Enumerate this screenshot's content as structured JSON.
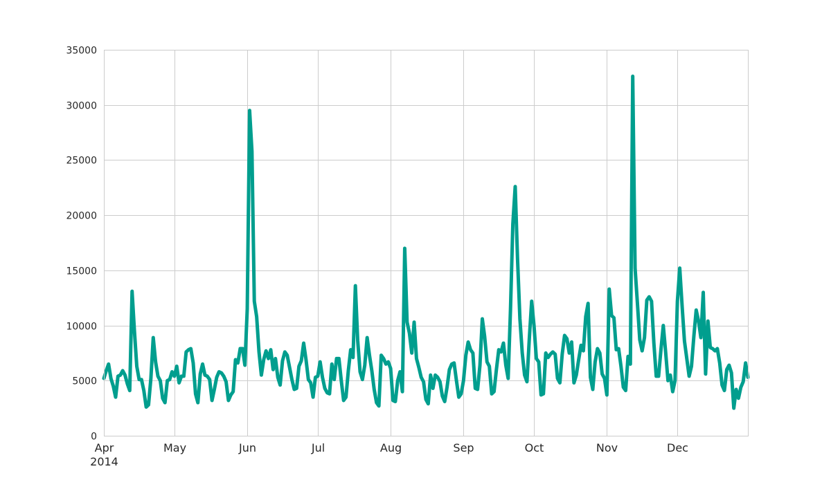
{
  "chart_data": {
    "type": "line",
    "title": "",
    "xlabel": "",
    "ylabel": "",
    "xlim": [
      "2014-04-01",
      "2014-12-31"
    ],
    "ylim": [
      0,
      35000
    ],
    "y_ticks": [
      "0",
      "5000",
      "10000",
      "15000",
      "20000",
      "25000",
      "30000",
      "35000"
    ],
    "x_ticks": [
      {
        "date": "2014-04-01",
        "label": "Apr",
        "sublabel": "2014"
      },
      {
        "date": "2014-05-01",
        "label": "May"
      },
      {
        "date": "2014-06-01",
        "label": "Jun"
      },
      {
        "date": "2014-07-01",
        "label": "Jul"
      },
      {
        "date": "2014-08-01",
        "label": "Aug"
      },
      {
        "date": "2014-09-01",
        "label": "Sep"
      },
      {
        "date": "2014-10-01",
        "label": "Oct"
      },
      {
        "date": "2014-11-01",
        "label": "Nov"
      },
      {
        "date": "2014-12-01",
        "label": "Dec"
      }
    ],
    "grid": true,
    "legend": "none",
    "line_color": "#009e8e",
    "series": [
      {
        "points": [
          [
            "2014-04-01",
            5200
          ],
          [
            "2014-04-02",
            5900
          ],
          [
            "2014-04-03",
            6500
          ],
          [
            "2014-04-04",
            5200
          ],
          [
            "2014-04-05",
            4500
          ],
          [
            "2014-04-06",
            3500
          ],
          [
            "2014-04-07",
            5400
          ],
          [
            "2014-04-08",
            5500
          ],
          [
            "2014-04-09",
            5900
          ],
          [
            "2014-04-10",
            5500
          ],
          [
            "2014-04-11",
            4700
          ],
          [
            "2014-04-12",
            4100
          ],
          [
            "2014-04-13",
            13100
          ],
          [
            "2014-04-14",
            9500
          ],
          [
            "2014-04-15",
            6300
          ],
          [
            "2014-04-16",
            5100
          ],
          [
            "2014-04-17",
            5100
          ],
          [
            "2014-04-18",
            4100
          ],
          [
            "2014-04-19",
            2600
          ],
          [
            "2014-04-20",
            2800
          ],
          [
            "2014-04-21",
            5200
          ],
          [
            "2014-04-22",
            8900
          ],
          [
            "2014-04-23",
            6700
          ],
          [
            "2014-04-24",
            5400
          ],
          [
            "2014-04-25",
            5000
          ],
          [
            "2014-04-26",
            3400
          ],
          [
            "2014-04-27",
            3000
          ],
          [
            "2014-04-28",
            5000
          ],
          [
            "2014-04-29",
            5100
          ],
          [
            "2014-04-30",
            5800
          ],
          [
            "2014-05-01",
            5400
          ],
          [
            "2014-05-02",
            6300
          ],
          [
            "2014-05-03",
            4800
          ],
          [
            "2014-05-04",
            5400
          ],
          [
            "2014-05-05",
            5400
          ],
          [
            "2014-05-06",
            7600
          ],
          [
            "2014-05-07",
            7800
          ],
          [
            "2014-05-08",
            7900
          ],
          [
            "2014-05-09",
            6600
          ],
          [
            "2014-05-10",
            3800
          ],
          [
            "2014-05-11",
            3000
          ],
          [
            "2014-05-12",
            5600
          ],
          [
            "2014-05-13",
            6500
          ],
          [
            "2014-05-14",
            5500
          ],
          [
            "2014-05-15",
            5400
          ],
          [
            "2014-05-16",
            5100
          ],
          [
            "2014-05-17",
            3200
          ],
          [
            "2014-05-18",
            4200
          ],
          [
            "2014-05-19",
            5300
          ],
          [
            "2014-05-20",
            5800
          ],
          [
            "2014-05-21",
            5700
          ],
          [
            "2014-05-22",
            5400
          ],
          [
            "2014-05-23",
            4900
          ],
          [
            "2014-05-24",
            3200
          ],
          [
            "2014-05-25",
            3700
          ],
          [
            "2014-05-26",
            4000
          ],
          [
            "2014-05-27",
            6900
          ],
          [
            "2014-05-28",
            6600
          ],
          [
            "2014-05-29",
            7900
          ],
          [
            "2014-05-30",
            7900
          ],
          [
            "2014-05-31",
            6400
          ],
          [
            "2014-06-01",
            11500
          ],
          [
            "2014-06-02",
            29500
          ],
          [
            "2014-06-03",
            25800
          ],
          [
            "2014-06-04",
            12200
          ],
          [
            "2014-06-05",
            10800
          ],
          [
            "2014-06-06",
            7600
          ],
          [
            "2014-06-07",
            5500
          ],
          [
            "2014-06-08",
            6900
          ],
          [
            "2014-06-09",
            7700
          ],
          [
            "2014-06-10",
            7000
          ],
          [
            "2014-06-11",
            7800
          ],
          [
            "2014-06-12",
            6000
          ],
          [
            "2014-06-13",
            7000
          ],
          [
            "2014-06-14",
            5300
          ],
          [
            "2014-06-15",
            4600
          ],
          [
            "2014-06-16",
            6800
          ],
          [
            "2014-06-17",
            7600
          ],
          [
            "2014-06-18",
            7300
          ],
          [
            "2014-06-19",
            6200
          ],
          [
            "2014-06-20",
            5100
          ],
          [
            "2014-06-21",
            4200
          ],
          [
            "2014-06-22",
            4300
          ],
          [
            "2014-06-23",
            6300
          ],
          [
            "2014-06-24",
            6800
          ],
          [
            "2014-06-25",
            8400
          ],
          [
            "2014-06-26",
            6900
          ],
          [
            "2014-06-27",
            5100
          ],
          [
            "2014-06-28",
            4800
          ],
          [
            "2014-06-29",
            3500
          ],
          [
            "2014-06-30",
            5300
          ],
          [
            "2014-07-01",
            5400
          ],
          [
            "2014-07-02",
            6700
          ],
          [
            "2014-07-03",
            5300
          ],
          [
            "2014-07-04",
            4300
          ],
          [
            "2014-07-05",
            3900
          ],
          [
            "2014-07-06",
            3800
          ],
          [
            "2014-07-07",
            6500
          ],
          [
            "2014-07-08",
            5100
          ],
          [
            "2014-07-09",
            7000
          ],
          [
            "2014-07-10",
            7000
          ],
          [
            "2014-07-11",
            5000
          ],
          [
            "2014-07-12",
            3200
          ],
          [
            "2014-07-13",
            3500
          ],
          [
            "2014-07-14",
            5900
          ],
          [
            "2014-07-15",
            7800
          ],
          [
            "2014-07-16",
            7100
          ],
          [
            "2014-07-17",
            13600
          ],
          [
            "2014-07-18",
            8600
          ],
          [
            "2014-07-19",
            5800
          ],
          [
            "2014-07-20",
            5100
          ],
          [
            "2014-07-21",
            6400
          ],
          [
            "2014-07-22",
            8900
          ],
          [
            "2014-07-23",
            7300
          ],
          [
            "2014-07-24",
            5900
          ],
          [
            "2014-07-25",
            4200
          ],
          [
            "2014-07-26",
            3000
          ],
          [
            "2014-07-27",
            2700
          ],
          [
            "2014-07-28",
            7300
          ],
          [
            "2014-07-29",
            7000
          ],
          [
            "2014-07-30",
            6500
          ],
          [
            "2014-07-31",
            6700
          ],
          [
            "2014-08-01",
            6100
          ],
          [
            "2014-08-02",
            3200
          ],
          [
            "2014-08-03",
            3100
          ],
          [
            "2014-08-04",
            5000
          ],
          [
            "2014-08-05",
            5800
          ],
          [
            "2014-08-06",
            4000
          ],
          [
            "2014-08-07",
            17000
          ],
          [
            "2014-08-08",
            10300
          ],
          [
            "2014-08-09",
            9300
          ],
          [
            "2014-08-10",
            7500
          ],
          [
            "2014-08-11",
            10300
          ],
          [
            "2014-08-12",
            7000
          ],
          [
            "2014-08-13",
            6200
          ],
          [
            "2014-08-14",
            5300
          ],
          [
            "2014-08-15",
            4900
          ],
          [
            "2014-08-16",
            3300
          ],
          [
            "2014-08-17",
            2900
          ],
          [
            "2014-08-18",
            5500
          ],
          [
            "2014-08-19",
            4300
          ],
          [
            "2014-08-20",
            5500
          ],
          [
            "2014-08-21",
            5300
          ],
          [
            "2014-08-22",
            4900
          ],
          [
            "2014-08-23",
            3600
          ],
          [
            "2014-08-24",
            3100
          ],
          [
            "2014-08-25",
            4400
          ],
          [
            "2014-08-26",
            6000
          ],
          [
            "2014-08-27",
            6500
          ],
          [
            "2014-08-28",
            6600
          ],
          [
            "2014-08-29",
            5000
          ],
          [
            "2014-08-30",
            3500
          ],
          [
            "2014-08-31",
            3800
          ],
          [
            "2014-09-01",
            5000
          ],
          [
            "2014-09-02",
            7300
          ],
          [
            "2014-09-03",
            8500
          ],
          [
            "2014-09-04",
            7800
          ],
          [
            "2014-09-05",
            7500
          ],
          [
            "2014-09-06",
            4300
          ],
          [
            "2014-09-07",
            4200
          ],
          [
            "2014-09-08",
            6400
          ],
          [
            "2014-09-09",
            10600
          ],
          [
            "2014-09-10",
            9000
          ],
          [
            "2014-09-11",
            6700
          ],
          [
            "2014-09-12",
            6300
          ],
          [
            "2014-09-13",
            3800
          ],
          [
            "2014-09-14",
            4000
          ],
          [
            "2014-09-15",
            6000
          ],
          [
            "2014-09-16",
            7800
          ],
          [
            "2014-09-17",
            7600
          ],
          [
            "2014-09-18",
            8400
          ],
          [
            "2014-09-19",
            6400
          ],
          [
            "2014-09-20",
            5200
          ],
          [
            "2014-09-21",
            11500
          ],
          [
            "2014-09-22",
            19200
          ],
          [
            "2014-09-23",
            22600
          ],
          [
            "2014-09-24",
            16000
          ],
          [
            "2014-09-25",
            10600
          ],
          [
            "2014-09-26",
            7500
          ],
          [
            "2014-09-27",
            5500
          ],
          [
            "2014-09-28",
            4900
          ],
          [
            "2014-09-29",
            8800
          ],
          [
            "2014-09-30",
            12200
          ],
          [
            "2014-10-01",
            10000
          ],
          [
            "2014-10-02",
            7000
          ],
          [
            "2014-10-03",
            6700
          ],
          [
            "2014-10-04",
            3700
          ],
          [
            "2014-10-05",
            3800
          ],
          [
            "2014-10-06",
            7500
          ],
          [
            "2014-10-07",
            7100
          ],
          [
            "2014-10-08",
            7400
          ],
          [
            "2014-10-09",
            7600
          ],
          [
            "2014-10-10",
            7400
          ],
          [
            "2014-10-11",
            5200
          ],
          [
            "2014-10-12",
            4800
          ],
          [
            "2014-10-13",
            7400
          ],
          [
            "2014-10-14",
            9100
          ],
          [
            "2014-10-15",
            8800
          ],
          [
            "2014-10-16",
            7500
          ],
          [
            "2014-10-17",
            8500
          ],
          [
            "2014-10-18",
            4800
          ],
          [
            "2014-10-19",
            5500
          ],
          [
            "2014-10-20",
            6900
          ],
          [
            "2014-10-21",
            8200
          ],
          [
            "2014-10-22",
            7700
          ],
          [
            "2014-10-23",
            10800
          ],
          [
            "2014-10-24",
            12000
          ],
          [
            "2014-10-25",
            5300
          ],
          [
            "2014-10-26",
            4200
          ],
          [
            "2014-10-27",
            6700
          ],
          [
            "2014-10-28",
            7900
          ],
          [
            "2014-10-29",
            7500
          ],
          [
            "2014-10-30",
            5600
          ],
          [
            "2014-10-31",
            5200
          ],
          [
            "2014-11-01",
            3700
          ],
          [
            "2014-11-02",
            13300
          ],
          [
            "2014-11-03",
            10900
          ],
          [
            "2014-11-04",
            10700
          ],
          [
            "2014-11-05",
            7800
          ],
          [
            "2014-11-06",
            7900
          ],
          [
            "2014-11-07",
            6300
          ],
          [
            "2014-11-08",
            4400
          ],
          [
            "2014-11-09",
            4100
          ],
          [
            "2014-11-10",
            7200
          ],
          [
            "2014-11-11",
            6500
          ],
          [
            "2014-11-12",
            32600
          ],
          [
            "2014-11-13",
            15200
          ],
          [
            "2014-11-14",
            12000
          ],
          [
            "2014-11-15",
            8700
          ],
          [
            "2014-11-16",
            7700
          ],
          [
            "2014-11-17",
            8900
          ],
          [
            "2014-11-18",
            12300
          ],
          [
            "2014-11-19",
            12600
          ],
          [
            "2014-11-20",
            12200
          ],
          [
            "2014-11-21",
            8400
          ],
          [
            "2014-11-22",
            5400
          ],
          [
            "2014-11-23",
            5400
          ],
          [
            "2014-11-24",
            7800
          ],
          [
            "2014-11-25",
            10000
          ],
          [
            "2014-11-26",
            7600
          ],
          [
            "2014-11-27",
            5000
          ],
          [
            "2014-11-28",
            5500
          ],
          [
            "2014-11-29",
            4000
          ],
          [
            "2014-11-30",
            5000
          ],
          [
            "2014-12-01",
            12200
          ],
          [
            "2014-12-02",
            15200
          ],
          [
            "2014-12-03",
            11800
          ],
          [
            "2014-12-04",
            8600
          ],
          [
            "2014-12-05",
            7000
          ],
          [
            "2014-12-06",
            5400
          ],
          [
            "2014-12-07",
            6300
          ],
          [
            "2014-12-08",
            9000
          ],
          [
            "2014-12-09",
            11400
          ],
          [
            "2014-12-10",
            10400
          ],
          [
            "2014-12-11",
            8900
          ],
          [
            "2014-12-12",
            13000
          ],
          [
            "2014-12-13",
            5600
          ],
          [
            "2014-12-14",
            10400
          ],
          [
            "2014-12-15",
            8000
          ],
          [
            "2014-12-16",
            7900
          ],
          [
            "2014-12-17",
            7700
          ],
          [
            "2014-12-18",
            7900
          ],
          [
            "2014-12-19",
            6600
          ],
          [
            "2014-12-20",
            4600
          ],
          [
            "2014-12-21",
            4100
          ],
          [
            "2014-12-22",
            6000
          ],
          [
            "2014-12-23",
            6400
          ],
          [
            "2014-12-24",
            5700
          ],
          [
            "2014-12-25",
            2500
          ],
          [
            "2014-12-26",
            4200
          ],
          [
            "2014-12-27",
            3400
          ],
          [
            "2014-12-28",
            4400
          ],
          [
            "2014-12-29",
            4900
          ],
          [
            "2014-12-30",
            6600
          ],
          [
            "2014-12-31",
            5300
          ]
        ]
      }
    ]
  }
}
